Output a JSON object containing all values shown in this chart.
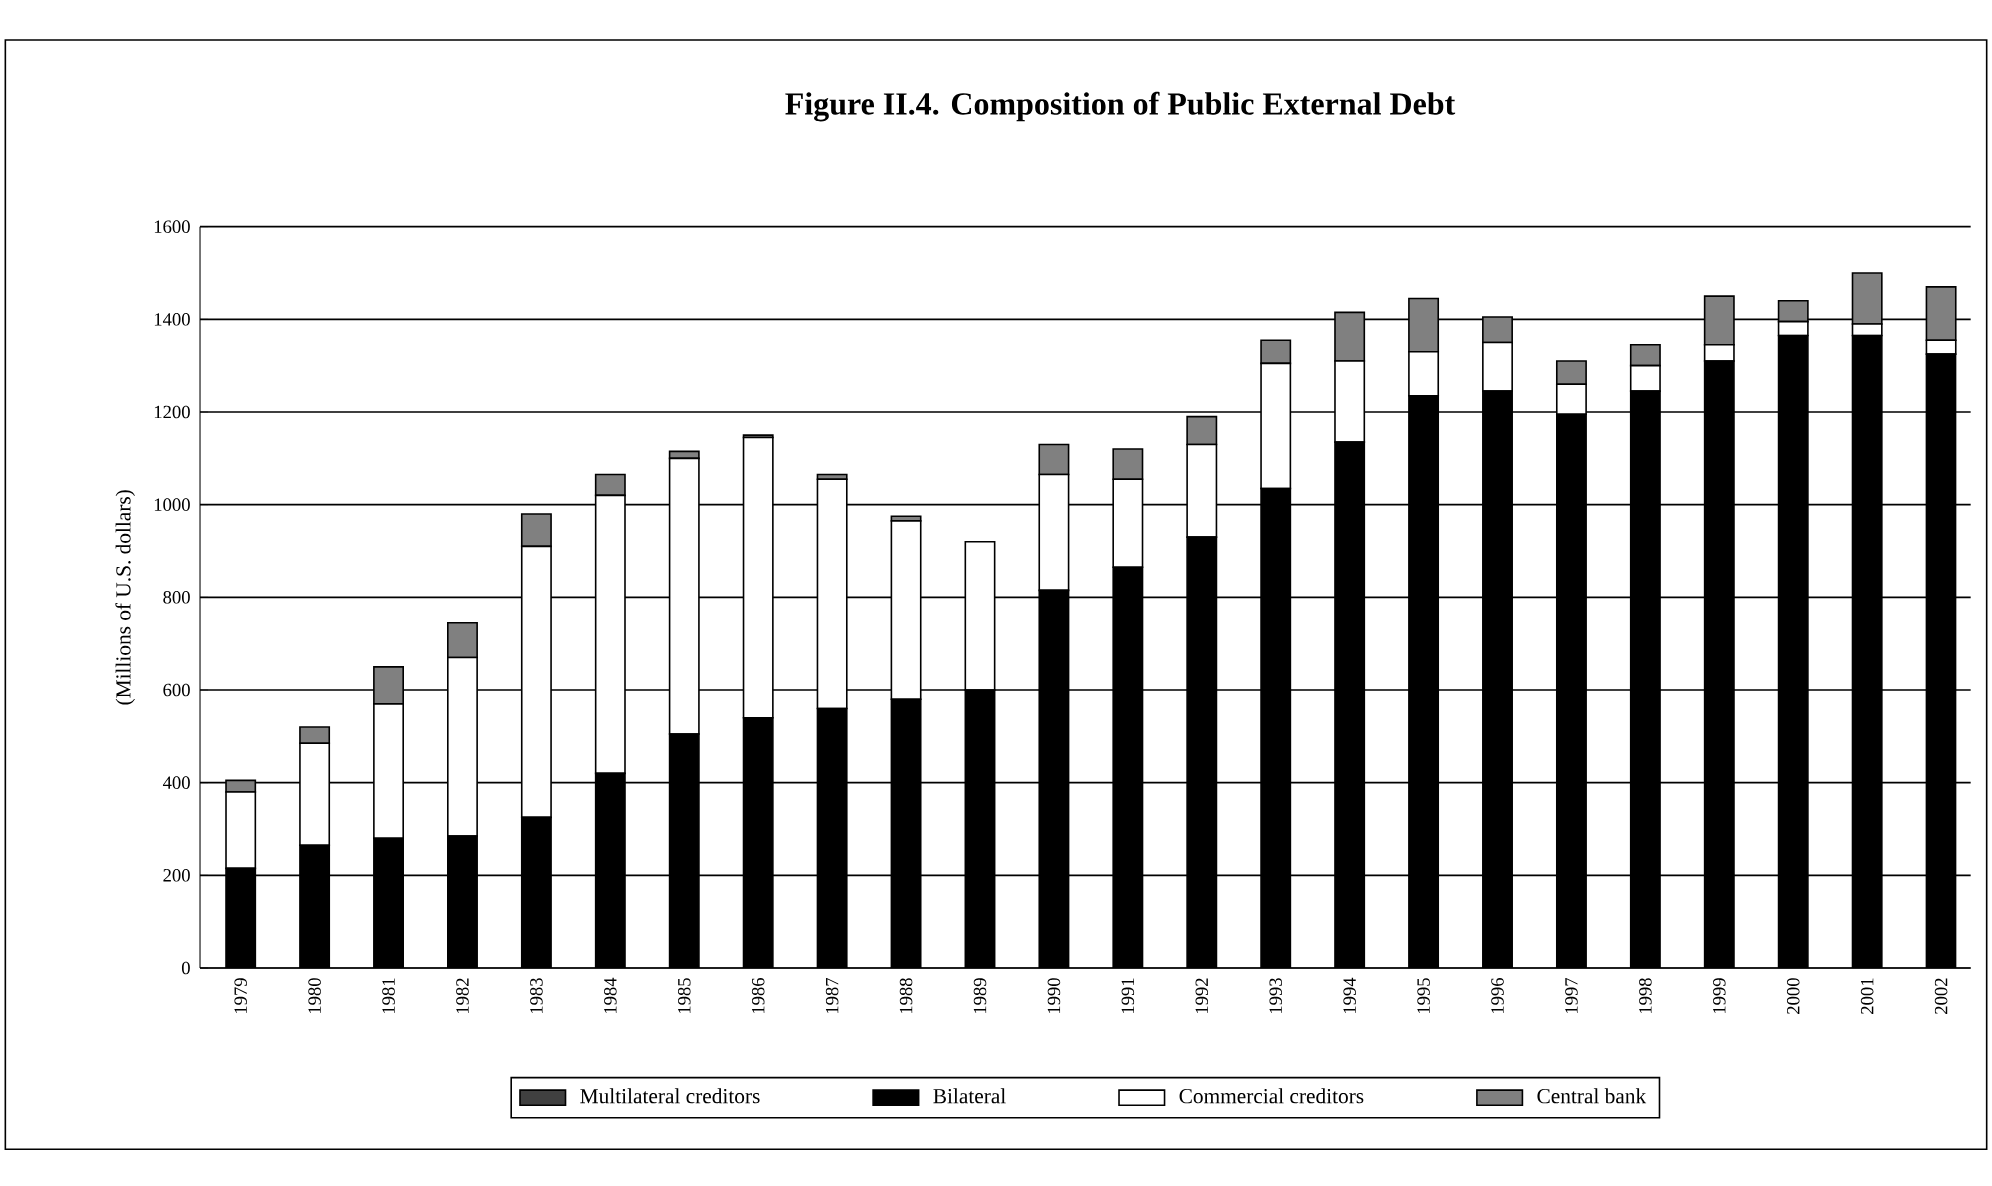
{
  "chart_data": {
    "type": "bar",
    "title": "Figure II.4. Composition of Public External Debt",
    "ylabel": "(Millions of U.S. dollars)",
    "categories": [
      "1979",
      "1980",
      "1981",
      "1982",
      "1983",
      "1984",
      "1985",
      "1986",
      "1987",
      "1988",
      "1989",
      "1990",
      "1991",
      "1992",
      "1993",
      "1994",
      "1995",
      "1996",
      "1997",
      "1998",
      "1999",
      "2000",
      "2001",
      "2002"
    ],
    "stacked": true,
    "series": [
      {
        "name": "Multilateral creditors",
        "color": "#404040",
        "values": [
          null,
          null,
          null,
          null,
          null,
          null,
          null,
          null,
          null,
          null,
          null,
          null,
          null,
          null,
          null,
          null,
          null,
          null,
          null,
          null,
          null,
          null,
          null,
          null
        ]
      },
      {
        "name": "Bilateral",
        "color": "#000000",
        "values": [
          215,
          265,
          280,
          285,
          325,
          420,
          505,
          540,
          560,
          580,
          600,
          815,
          865,
          930,
          1035,
          1135,
          1235,
          1245,
          1195,
          1245,
          1310,
          1365,
          1365,
          1325
        ]
      },
      {
        "name": "Commercial creditors",
        "color": "#ffffff",
        "values": [
          165,
          220,
          290,
          385,
          585,
          600,
          595,
          605,
          495,
          385,
          320,
          250,
          190,
          200,
          270,
          175,
          95,
          105,
          65,
          55,
          35,
          30,
          25,
          30
        ]
      },
      {
        "name": "Central bank",
        "color": "#808080",
        "values": [
          25,
          35,
          80,
          75,
          70,
          45,
          15,
          5,
          10,
          10,
          0,
          65,
          65,
          60,
          50,
          105,
          115,
          55,
          50,
          45,
          105,
          45,
          110,
          115
        ]
      }
    ],
    "ylim": [
      0,
      1600
    ],
    "yticks": [
      0,
      200,
      400,
      600,
      800,
      1000,
      1200,
      1400,
      1600
    ],
    "grid": "y",
    "legend": "bottom"
  }
}
